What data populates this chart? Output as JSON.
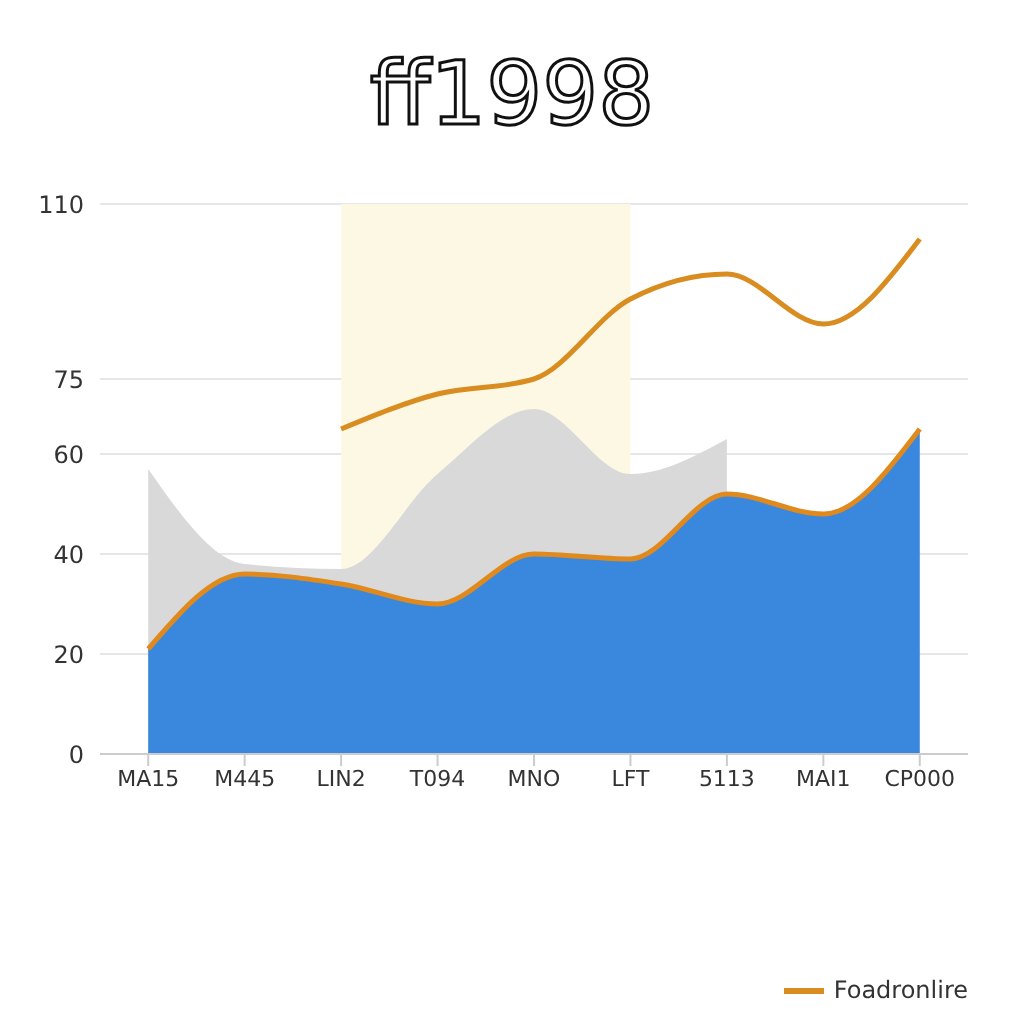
{
  "chart_data": {
    "type": "area",
    "title": "ff1998",
    "categories": [
      "MA15",
      "M445",
      "LIN2",
      "T094",
      "MNO",
      "LFT",
      "5113",
      "MAI1",
      "CP000"
    ],
    "ylim": [
      0,
      110
    ],
    "yticks": [
      0,
      20,
      40,
      60,
      75,
      110
    ],
    "grid": "y",
    "legend": "bottom right",
    "bands": [
      {
        "axis": "x",
        "from": "LIN2",
        "to": "LFT",
        "color": "#fdf8e4"
      }
    ],
    "series": [
      {
        "color": "#d9d9d9",
        "values": [
          57,
          38,
          37,
          56,
          69,
          56,
          63,
          null,
          null
        ]
      },
      {
        "color": "#3a87de",
        "values": [
          21,
          36,
          34,
          30,
          40,
          39,
          52,
          48,
          65
        ]
      },
      {
        "type": "line",
        "color": "#e08a1e",
        "values": [
          21,
          36,
          34,
          30,
          40,
          39,
          52,
          48,
          65
        ]
      },
      {
        "type": "line",
        "name": "Foadronlire",
        "color": "#d98c1f",
        "values": [
          null,
          null,
          65,
          72,
          75,
          91,
          96,
          86,
          103
        ]
      }
    ]
  }
}
